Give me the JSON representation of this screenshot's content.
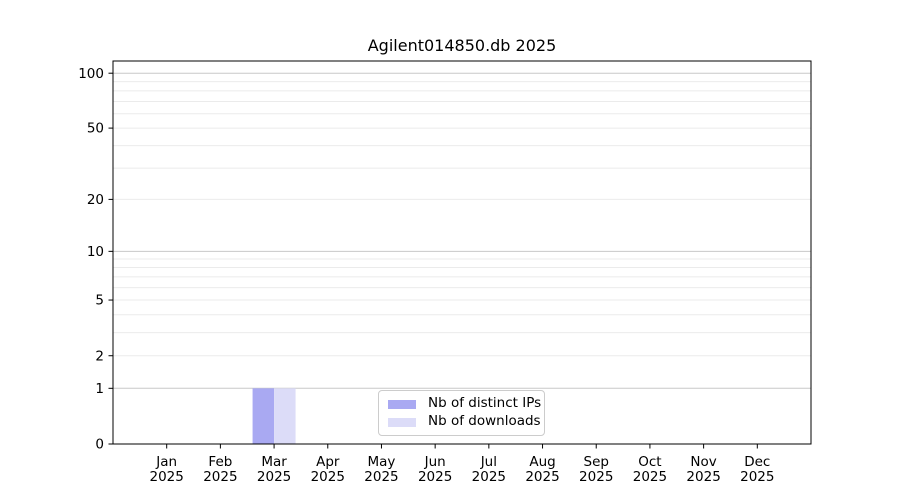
{
  "chart_data": {
    "type": "bar",
    "title": "Agilent014850.db 2025",
    "categories": [
      "Jan",
      "Feb",
      "Mar",
      "Apr",
      "May",
      "Jun",
      "Jul",
      "Aug",
      "Sep",
      "Oct",
      "Nov",
      "Dec"
    ],
    "x_tick_year": "2025",
    "series": [
      {
        "name": "Nb of distinct IPs",
        "color": "#a9a9f2",
        "values": [
          0,
          0,
          1,
          0,
          0,
          0,
          0,
          0,
          0,
          0,
          0,
          0
        ]
      },
      {
        "name": "Nb of downloads",
        "color": "#dcdcf8",
        "values": [
          0,
          0,
          1,
          0,
          0,
          0,
          0,
          0,
          0,
          0,
          0,
          0
        ]
      }
    ],
    "y_scale": "log1p",
    "y_tick_values": [
      0,
      1,
      2,
      5,
      10,
      20,
      50,
      100
    ],
    "y_minor_gridlines": [
      2,
      3,
      4,
      5,
      6,
      7,
      8,
      9,
      20,
      30,
      40,
      50,
      60,
      70,
      80,
      90
    ],
    "y_major_gridlines": [
      1,
      10,
      100
    ],
    "ylim": [
      0,
      117
    ],
    "xlabel": "",
    "ylabel": "",
    "grid": "horizontal",
    "legend_position": "lower center",
    "colors": {
      "axis": "#000000",
      "text": "#000000",
      "grid_minor": "#ebebeb",
      "grid_major": "#c8c8c8",
      "legend_border": "#cccccc",
      "background": "#ffffff"
    }
  }
}
